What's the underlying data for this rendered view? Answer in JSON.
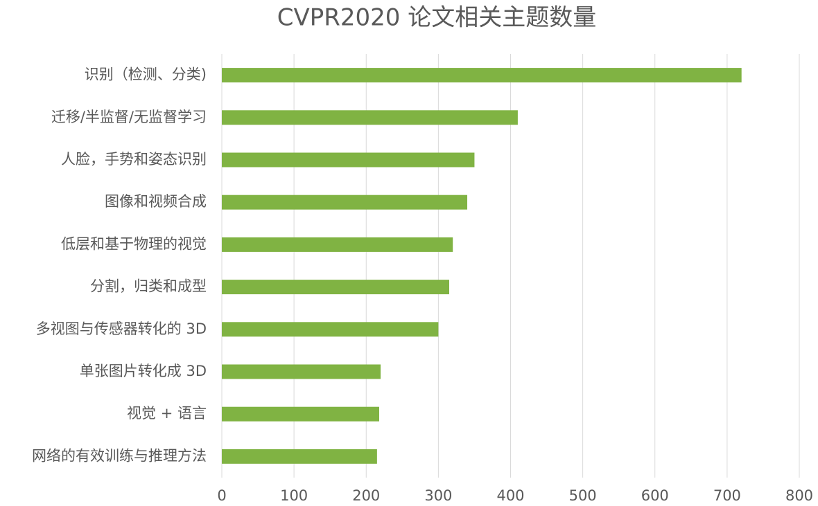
{
  "chart_data": {
    "type": "bar",
    "orientation": "horizontal",
    "title": "CVPR2020 论文相关主题数量",
    "categories": [
      "识别（检测、分类)",
      "迁移/半监督/无监督学习",
      "人脸，手势和姿态识别",
      "图像和视频合成",
      "低层和基于物理的视觉",
      "分割，归类和成型",
      "多视图与传感器转化的 3D",
      "单张图片转化成 3D",
      "视觉 + 语言",
      "网络的有效训练与推理方法"
    ],
    "values": [
      720,
      410,
      350,
      340,
      320,
      315,
      300,
      220,
      218,
      215
    ],
    "color": "#80b343",
    "xlim": [
      0,
      800
    ],
    "xticks": [
      0,
      100,
      200,
      300,
      400,
      500,
      600,
      700,
      800
    ],
    "grid": true
  }
}
